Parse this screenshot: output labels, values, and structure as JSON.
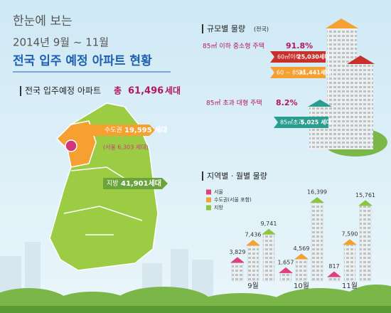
{
  "header": {
    "kicker": "한눈에 보는",
    "period": "2014년 9월 ~ 11월",
    "title": "전국 입주 예정 아파트 현황"
  },
  "total": {
    "label": "전국 입주예정 아파트",
    "prefix": "총",
    "value": "61,496",
    "unit": "세대"
  },
  "map": {
    "capital": "수도권",
    "capital_value": "19,595 세대",
    "seoul": "(서울 6,303 세대)",
    "region": "지방",
    "region_value": "41,901세대"
  },
  "size": {
    "title": "규모별 물량",
    "note": "(전국)",
    "small": {
      "label": "85㎡ 이하 중소형 주택",
      "pct": "91.8%"
    },
    "tag60": {
      "label": "60㎡이하",
      "value": "25,030세대"
    },
    "tag85": {
      "label": "60 ~ 85㎡",
      "value": "31,441세대"
    },
    "large": {
      "label": "85㎡ 초과 대형 주택",
      "pct": "8.2%"
    },
    "tagL": {
      "label": "85㎡초과",
      "value": "5,025 세대"
    }
  },
  "chart_data": {
    "type": "bar",
    "title": "지역별 · 월별 물량",
    "categories": [
      "9월",
      "10월",
      "11월"
    ],
    "series": [
      {
        "name": "서울",
        "color": "#e0407a",
        "values": [
          3829,
          1657,
          817
        ],
        "value_labels": [
          "3,829",
          "1,657",
          "817"
        ]
      },
      {
        "name": "수도권(서울 포함)",
        "color": "#f5a031",
        "values": [
          7436,
          4569,
          7590
        ],
        "value_labels": [
          "7,436",
          "4,569",
          "7,590"
        ]
      },
      {
        "name": "지방",
        "color": "#8cc63f",
        "values": [
          9741,
          16399,
          15761
        ],
        "value_labels": [
          "9,741",
          "16,399",
          "15,761"
        ]
      }
    ]
  }
}
